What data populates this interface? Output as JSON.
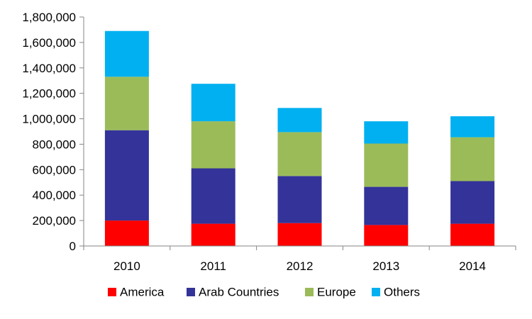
{
  "chart_data": {
    "type": "bar",
    "stacked": true,
    "categories": [
      "2010",
      "2011",
      "2012",
      "2013",
      "2014"
    ],
    "series": [
      {
        "name": "America",
        "color": "#ff0000",
        "values": [
          200000,
          175000,
          180000,
          165000,
          175000
        ]
      },
      {
        "name": "Arab Countries",
        "color": "#333399",
        "values": [
          710000,
          435000,
          370000,
          300000,
          335000
        ]
      },
      {
        "name": "Europe",
        "color": "#9bbb59",
        "values": [
          420000,
          370000,
          345000,
          340000,
          345000
        ]
      },
      {
        "name": "Others",
        "color": "#00b0f0",
        "values": [
          360000,
          295000,
          190000,
          175000,
          165000
        ]
      }
    ],
    "ylim": [
      0,
      1800000
    ],
    "yticks": [
      0,
      200000,
      400000,
      600000,
      800000,
      1000000,
      1200000,
      1400000,
      1600000,
      1800000
    ],
    "ytick_labels": [
      "0",
      "200,000",
      "400,000",
      "600,000",
      "800,000",
      "1,000,000",
      "1,200,000",
      "1,400,000",
      "1,600,000",
      "1,800,000"
    ],
    "grid": false,
    "legend_position": "bottom"
  }
}
